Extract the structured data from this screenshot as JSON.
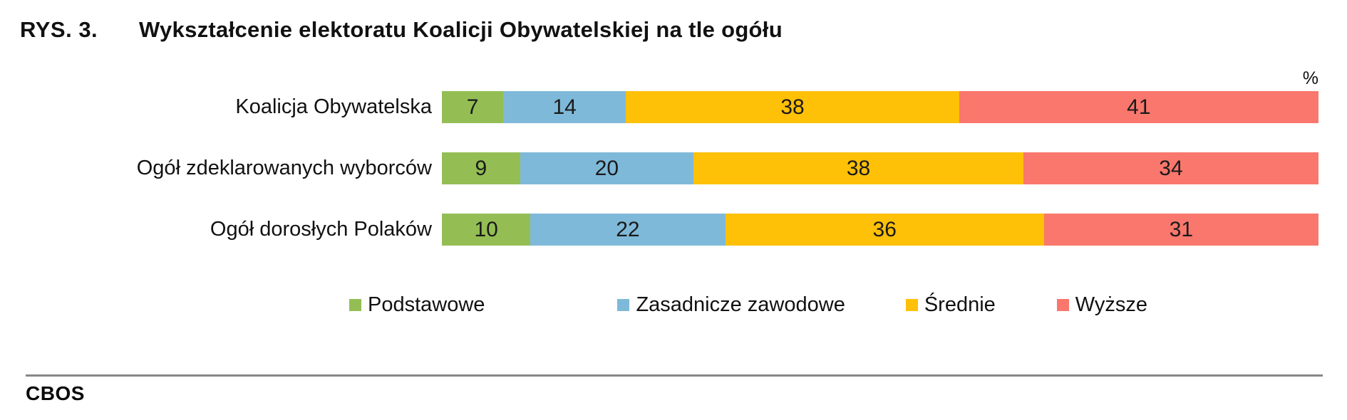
{
  "title": {
    "prefix": "RYS. 3.",
    "text": "Wykształcenie elektoratu Koalicji Obywatelskiej na tle ogółu"
  },
  "unit_label": "%",
  "footer": {
    "source": "CBOS"
  },
  "chart_data": {
    "type": "bar",
    "variant": "stacked-horizontal",
    "unit": "%",
    "grid": false,
    "legend_position": "bottom",
    "categories": [
      "Koalicja Obywatelska",
      "Ogół zdeklarowanych wyborców",
      "Ogół dorosłych Polaków"
    ],
    "series": [
      {
        "name": "Podstawowe",
        "color": "#94BE54",
        "values": [
          7,
          9,
          10
        ]
      },
      {
        "name": "Zasadnicze zawodowe",
        "color": "#7FB9D9",
        "values": [
          14,
          20,
          22
        ]
      },
      {
        "name": "Średnie",
        "color": "#FFC008",
        "values": [
          38,
          38,
          36
        ]
      },
      {
        "name": "Wyższe",
        "color": "#F9776C",
        "values": [
          41,
          34,
          31
        ]
      }
    ]
  }
}
